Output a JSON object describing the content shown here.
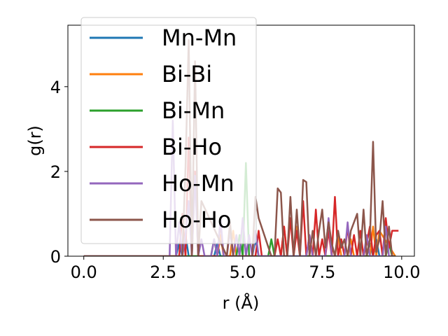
{
  "chart_data": {
    "type": "line",
    "title": "",
    "xlabel": "r (Å)",
    "ylabel": "g(r)",
    "xlim": [
      -0.5,
      10.4
    ],
    "ylim": [
      0,
      5.45
    ],
    "xticks": [
      0.0,
      2.5,
      5.0,
      7.5,
      10.0
    ],
    "xtick_labels": [
      "0.0",
      "2.5",
      "5.0",
      "7.5",
      "10.0"
    ],
    "yticks": [
      0,
      2,
      4
    ],
    "ytick_labels": [
      "0",
      "2",
      "4"
    ],
    "grid": false,
    "legend_position": "top-left",
    "series": [
      {
        "name": "Mn-Mn",
        "color": "#1f77b4",
        "x": [
          0,
          2.9,
          3.0,
          3.1,
          3.2,
          3.3,
          3.4,
          4.1,
          4.2,
          4.3,
          4.4,
          5.3,
          5.4,
          5.5,
          8.9,
          9.0,
          9.1,
          9.2,
          9.3
        ],
        "y": [
          0,
          0,
          0.3,
          0,
          0.5,
          0,
          0,
          0,
          0.3,
          0,
          0,
          0,
          0.4,
          0,
          0,
          0.3,
          0,
          0.4,
          0
        ]
      },
      {
        "name": "Bi-Bi",
        "color": "#ff7f0e",
        "x": [
          0,
          4.2,
          4.3,
          4.4,
          4.6,
          4.7,
          4.8,
          6.2,
          6.3,
          6.4,
          6.6,
          6.7,
          6.8,
          7.9,
          8.0,
          8.1,
          8.3,
          8.4,
          8.5,
          9.0,
          9.1,
          9.2,
          9.3,
          9.8
        ],
        "y": [
          0,
          0,
          0.5,
          0,
          0,
          0.6,
          0,
          0,
          0.7,
          0,
          0,
          0.7,
          0,
          0,
          0.5,
          0,
          0,
          0.4,
          0,
          0,
          0.7,
          0,
          0.6,
          0
        ]
      },
      {
        "name": "Bi-Mn",
        "color": "#2ca02c",
        "x": [
          0,
          4.0,
          4.1,
          4.2,
          4.8,
          4.9,
          5.0,
          5.1,
          5.2,
          5.3,
          5.8,
          5.9,
          6.0,
          9.5,
          9.6,
          9.7,
          9.8
        ],
        "y": [
          0,
          0,
          0.4,
          0,
          0,
          0.5,
          0,
          2.2,
          0,
          0,
          0,
          0.4,
          0,
          0,
          0.3,
          0,
          0
        ]
      },
      {
        "name": "Bi-Ho",
        "color": "#d62728",
        "x": [
          0,
          3.0,
          3.1,
          3.2,
          3.3,
          3.4,
          3.5,
          3.6,
          4.2,
          4.3,
          4.4,
          5.4,
          5.5,
          5.6,
          6.0,
          6.1,
          6.2,
          6.3,
          6.4,
          6.5,
          6.6,
          6.7,
          6.8,
          6.9,
          7.0,
          7.1,
          7.2,
          7.3,
          7.4,
          7.5,
          7.6,
          7.7,
          7.8,
          7.9,
          8.0,
          8.1,
          8.2,
          8.3,
          8.4,
          8.5,
          8.6,
          8.7,
          8.8,
          8.9,
          9.0,
          9.1,
          9.2,
          9.3,
          9.4,
          9.5,
          9.6,
          9.7,
          9.8,
          9.9
        ],
        "y": [
          0,
          0,
          1.0,
          0,
          2.8,
          0,
          2.0,
          0,
          0,
          0.8,
          0,
          0,
          0.6,
          0,
          0,
          0.4,
          0,
          0.7,
          0,
          0.9,
          0,
          0.6,
          0,
          1.3,
          0,
          0.5,
          0,
          1.1,
          0,
          0.4,
          0,
          0.6,
          0,
          1.4,
          0,
          0.4,
          0,
          0.7,
          0,
          0.5,
          0,
          0.6,
          0,
          0.3,
          0.7,
          0,
          0.5,
          0.6,
          0,
          0.9,
          0.2,
          0.6,
          0.6,
          0.6
        ]
      },
      {
        "name": "Ho-Mn",
        "color": "#9467bd",
        "x": [
          0,
          2.7,
          2.8,
          2.9,
          3.0,
          3.1,
          3.2,
          3.3,
          3.4,
          3.5,
          3.6,
          3.7,
          3.8,
          4.0,
          4.1,
          4.2,
          4.3,
          4.4,
          4.5,
          4.6,
          4.7,
          4.8,
          4.9,
          5.0,
          5.1,
          5.2,
          5.3,
          5.4,
          5.5,
          7.0,
          7.1,
          7.2,
          7.6,
          7.7,
          7.8,
          8.2,
          8.3,
          8.4,
          8.8,
          8.9,
          9.0,
          9.4,
          9.5,
          9.6,
          9.7
        ],
        "y": [
          0,
          0,
          3.2,
          0,
          0.8,
          0,
          0.5,
          1.3,
          0,
          1.9,
          0,
          0.4,
          0,
          0,
          0.4,
          0,
          0.9,
          0,
          0,
          0.6,
          0,
          0.5,
          0,
          0.9,
          0,
          0.5,
          0,
          0.6,
          0,
          0,
          0.5,
          0,
          0,
          0.9,
          0,
          0,
          0.8,
          0,
          0,
          0.5,
          0,
          0,
          0.7,
          0,
          0
        ]
      },
      {
        "name": "Ho-Ho",
        "color": "#8c564b",
        "x": [
          0,
          3.1,
          3.2,
          3.3,
          3.4,
          3.5,
          3.6,
          3.7,
          4.5,
          4.6,
          4.7,
          5.3,
          5.4,
          5.5,
          5.9,
          6.0,
          6.1,
          6.2,
          6.3,
          6.4,
          6.5,
          6.6,
          6.7,
          6.8,
          6.9,
          7.0,
          7.1,
          7.2,
          7.3,
          7.4,
          7.5,
          7.6,
          7.7,
          7.8,
          7.9,
          8.0,
          8.1,
          8.2,
          8.3,
          8.4,
          8.5,
          8.6,
          8.7,
          8.8,
          8.9,
          9.0,
          9.1,
          9.2,
          9.3,
          9.4,
          9.5,
          9.6,
          9.7,
          9.8
        ],
        "y": [
          0,
          0,
          2.1,
          5.1,
          0,
          4.6,
          0,
          1.3,
          0,
          0.8,
          0,
          0,
          1.4,
          0.9,
          0,
          0,
          1.6,
          1.5,
          0,
          0,
          1.4,
          0,
          1.1,
          0,
          1.8,
          1.75,
          0,
          0.6,
          0,
          0.6,
          1.1,
          0.2,
          0.8,
          0.3,
          0,
          0.6,
          0.2,
          0.4,
          0,
          0.6,
          0.8,
          1.0,
          0,
          1.1,
          0,
          0.4,
          2.7,
          0.1,
          0.4,
          1.3,
          0,
          0.7,
          0,
          0
        ]
      }
    ]
  }
}
